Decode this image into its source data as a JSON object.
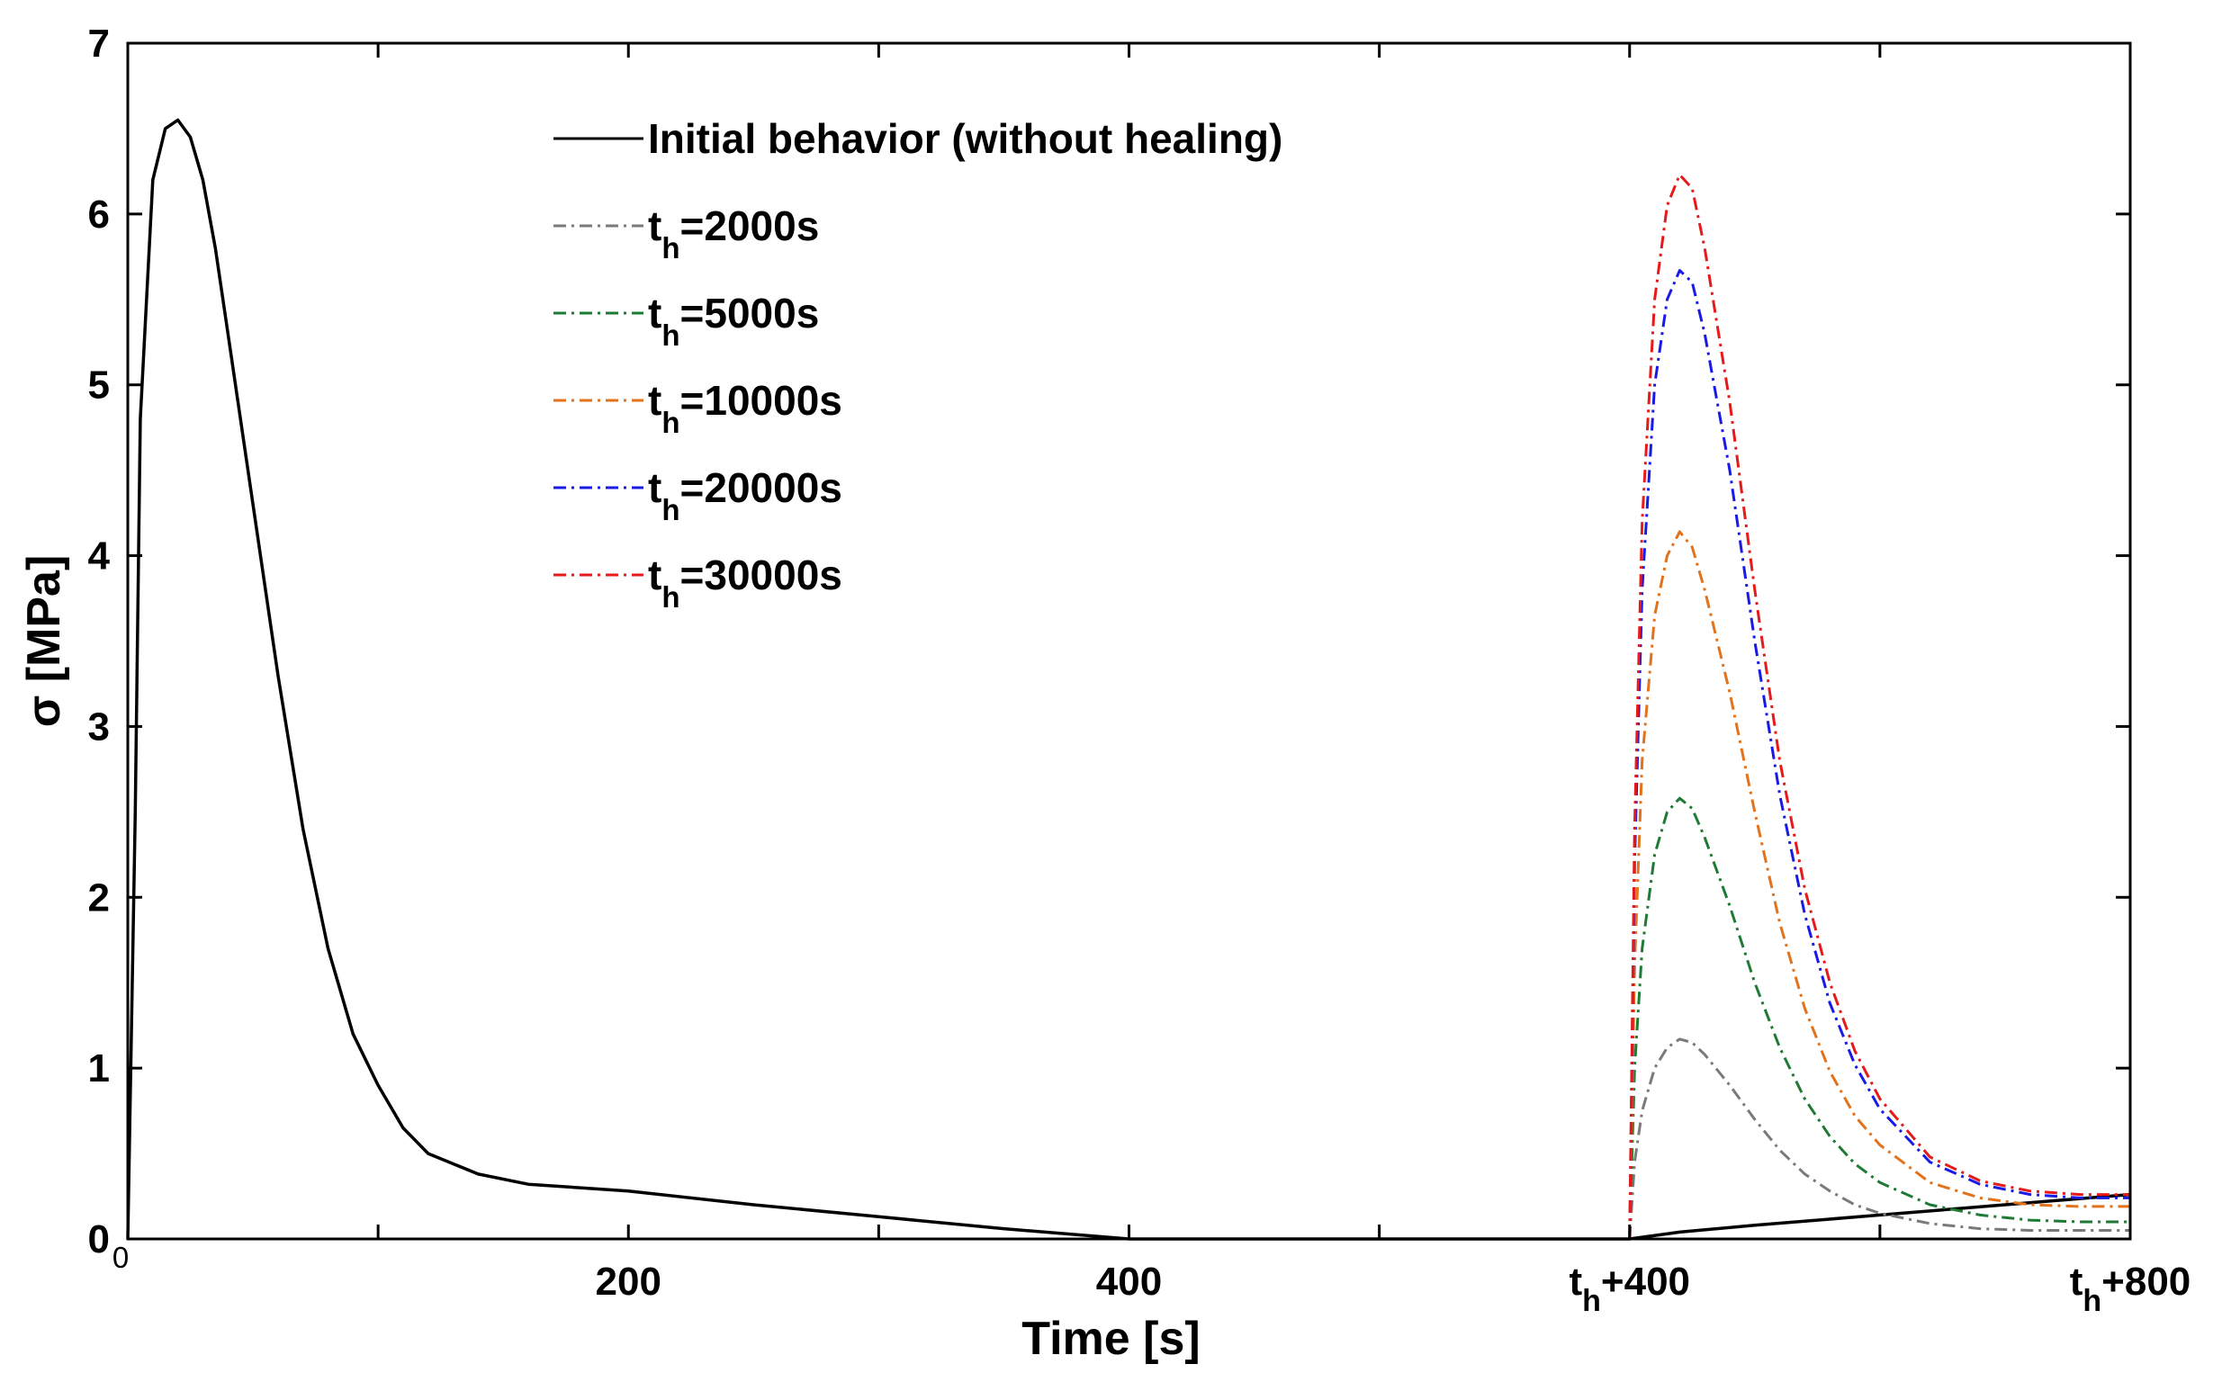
{
  "chart_data": {
    "type": "line",
    "title": "",
    "xlabel": "Time [s]",
    "ylabel": "σ [MPa]",
    "xlim": [
      0,
      800
    ],
    "ylim": [
      0,
      7
    ],
    "grid": false,
    "x_ticks": [
      {
        "value": 0,
        "label": "0",
        "small": true
      },
      {
        "value": 100,
        "label": ""
      },
      {
        "value": 200,
        "label": "200"
      },
      {
        "value": 300,
        "label": ""
      },
      {
        "value": 400,
        "label": "400"
      },
      {
        "value": 500,
        "label": ""
      },
      {
        "value": 600,
        "label": "t",
        "sub": "h",
        "suffix": "+400"
      },
      {
        "value": 700,
        "label": ""
      },
      {
        "value": 800,
        "label": "t",
        "sub": "h",
        "suffix": "+800"
      }
    ],
    "y_ticks": [
      {
        "value": 0,
        "label": "0"
      },
      {
        "value": 1,
        "label": "1"
      },
      {
        "value": 2,
        "label": "2"
      },
      {
        "value": 3,
        "label": "3"
      },
      {
        "value": 4,
        "label": "4"
      },
      {
        "value": 5,
        "label": "5"
      },
      {
        "value": 6,
        "label": "6"
      },
      {
        "value": 7,
        "label": "7"
      }
    ],
    "legend_position": "top-center",
    "series": [
      {
        "name": "Initial behavior (without healing)",
        "legend_main": "Initial behavior (without healing)",
        "color": "#000000",
        "dash": "solid",
        "x": [
          0,
          3,
          5,
          10,
          15,
          20,
          25,
          30,
          35,
          40,
          50,
          60,
          70,
          80,
          90,
          100,
          110,
          120,
          140,
          160,
          180,
          200,
          250,
          300,
          350,
          400,
          450,
          500,
          600,
          620,
          650,
          700,
          750,
          800
        ],
        "y": [
          0,
          2.5,
          4.8,
          6.2,
          6.5,
          6.55,
          6.45,
          6.2,
          5.8,
          5.3,
          4.3,
          3.3,
          2.4,
          1.7,
          1.2,
          0.9,
          0.65,
          0.5,
          0.38,
          0.32,
          0.3,
          0.28,
          0.2,
          0.13,
          0.06,
          0.0,
          0.0,
          0.0,
          0.0,
          0.04,
          0.08,
          0.14,
          0.2,
          0.26
        ]
      },
      {
        "name": "th=2000s",
        "legend_main": "t",
        "legend_sub": "h",
        "legend_suffix": "=2000s",
        "color": "#7a7a7a",
        "dash": "dashdot",
        "x": [
          600,
          602,
          605,
          610,
          615,
          620,
          625,
          630,
          640,
          650,
          660,
          670,
          680,
          690,
          700,
          720,
          740,
          760,
          780,
          800
        ],
        "y": [
          0,
          0.45,
          0.75,
          1.0,
          1.12,
          1.17,
          1.15,
          1.08,
          0.9,
          0.7,
          0.52,
          0.38,
          0.28,
          0.2,
          0.15,
          0.09,
          0.06,
          0.05,
          0.05,
          0.05
        ]
      },
      {
        "name": "th=5000s",
        "legend_main": "t",
        "legend_sub": "h",
        "legend_suffix": "=5000s",
        "color": "#1e7a34",
        "dash": "dashdot",
        "x": [
          600,
          602,
          605,
          610,
          615,
          620,
          625,
          630,
          640,
          650,
          660,
          670,
          680,
          690,
          700,
          720,
          740,
          760,
          780,
          800
        ],
        "y": [
          0,
          1.0,
          1.7,
          2.25,
          2.5,
          2.58,
          2.52,
          2.35,
          1.95,
          1.5,
          1.12,
          0.82,
          0.6,
          0.44,
          0.33,
          0.2,
          0.14,
          0.11,
          0.1,
          0.1
        ]
      },
      {
        "name": "th=10000s",
        "legend_main": "t",
        "legend_sub": "h",
        "legend_suffix": "=10000s",
        "color": "#e2731c",
        "dash": "dashdot",
        "x": [
          600,
          602,
          605,
          610,
          615,
          620,
          625,
          630,
          640,
          650,
          660,
          670,
          680,
          690,
          700,
          720,
          740,
          760,
          780,
          800
        ],
        "y": [
          0,
          1.6,
          2.8,
          3.65,
          4.0,
          4.14,
          4.05,
          3.8,
          3.2,
          2.5,
          1.85,
          1.35,
          0.98,
          0.72,
          0.55,
          0.33,
          0.24,
          0.2,
          0.19,
          0.19
        ]
      },
      {
        "name": "th=20000s",
        "legend_main": "t",
        "legend_sub": "h",
        "legend_suffix": "=20000s",
        "color": "#1a1ae6",
        "dash": "dashdot",
        "x": [
          600,
          602,
          605,
          610,
          615,
          620,
          625,
          630,
          640,
          650,
          660,
          670,
          680,
          690,
          700,
          720,
          740,
          760,
          780,
          800
        ],
        "y": [
          0,
          2.2,
          3.8,
          5.0,
          5.5,
          5.67,
          5.6,
          5.3,
          4.5,
          3.5,
          2.6,
          1.9,
          1.38,
          1.02,
          0.76,
          0.45,
          0.32,
          0.26,
          0.24,
          0.24
        ]
      },
      {
        "name": "th=30000s",
        "legend_main": "t",
        "legend_sub": "h",
        "legend_suffix": "=30000s",
        "color": "#e61a1a",
        "dash": "dashdot",
        "x": [
          600,
          602,
          605,
          610,
          615,
          620,
          625,
          630,
          640,
          650,
          660,
          670,
          680,
          690,
          700,
          720,
          740,
          760,
          780,
          800
        ],
        "y": [
          0,
          2.4,
          4.2,
          5.5,
          6.05,
          6.23,
          6.15,
          5.8,
          4.9,
          3.8,
          2.8,
          2.05,
          1.5,
          1.1,
          0.82,
          0.48,
          0.34,
          0.28,
          0.26,
          0.26
        ]
      }
    ]
  }
}
